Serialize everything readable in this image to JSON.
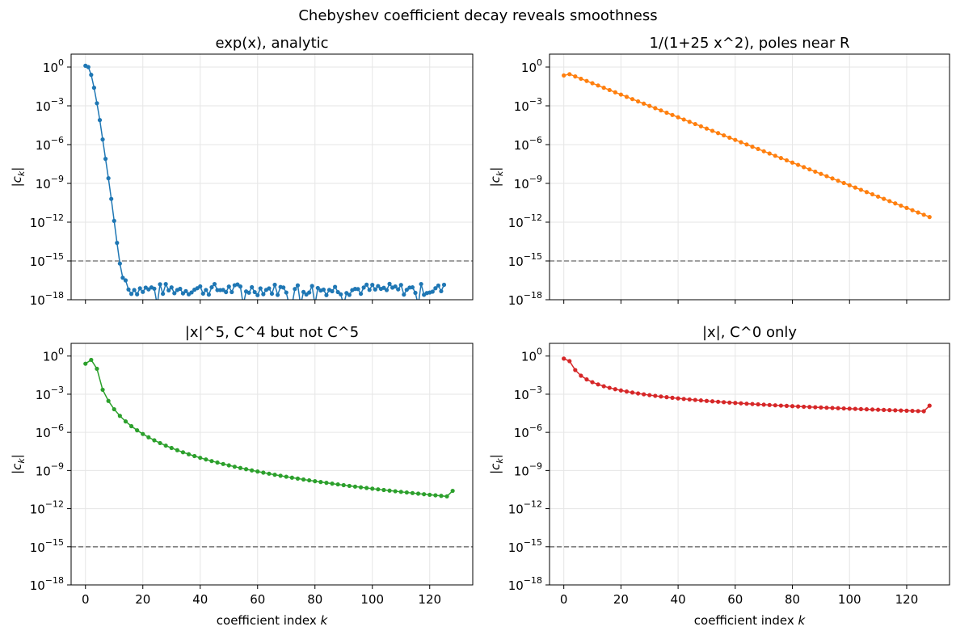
{
  "figure": {
    "suptitle": "Chebyshev coefficient decay reveals smoothness"
  },
  "chart_data": [
    {
      "type": "line",
      "title": "exp(x), analytic",
      "color": "#1f77b4",
      "xlabel": "",
      "ylabel": "|c_k|",
      "yscale": "log",
      "ylim_exp": [
        -18,
        1
      ],
      "xlim": [
        -5,
        135
      ],
      "yticks_exp": [
        0,
        -3,
        -6,
        -9,
        -12,
        -15,
        -18
      ],
      "xticks": [
        0,
        20,
        40,
        60,
        80,
        100,
        120
      ],
      "show_xticklabels": false,
      "grid": true,
      "reference_line": {
        "value": "1e-15",
        "style": "dashed",
        "color": "#808080"
      },
      "series": [
        {
          "x": [
            0,
            1,
            2,
            3,
            4,
            5,
            6,
            7,
            8,
            9,
            10,
            11,
            12,
            13,
            14
          ],
          "log10_y": [
            0.1,
            0.0,
            -0.6,
            -1.6,
            -2.8,
            -4.1,
            -5.6,
            -7.1,
            -8.6,
            -10.2,
            -11.9,
            -13.6,
            -15.2,
            -16.3,
            -16.5
          ],
          "noise_floor": {
            "from_x": 15,
            "to_x": 125,
            "range_log10": [
              -18.3,
              -16.8
            ],
            "description_of_values": "fluctuating around 1e-17"
          }
        }
      ]
    },
    {
      "type": "line",
      "title": "1/(1+25 x^2), poles near R",
      "color": "#ff7f0e",
      "xlabel": "",
      "ylabel": "|c_k|",
      "yscale": "log",
      "ylim_exp": [
        -18,
        1
      ],
      "xlim": [
        -5,
        135
      ],
      "yticks_exp": [
        0,
        -3,
        -6,
        -9,
        -12,
        -15,
        -18
      ],
      "xticks": [
        0,
        20,
        40,
        60,
        80,
        100,
        120
      ],
      "show_xticklabels": false,
      "grid": true,
      "reference_line": {
        "value": "1e-15",
        "style": "dashed",
        "color": "#808080"
      },
      "series": [
        {
          "x_step": 2,
          "x_start": 0,
          "x_end": 128,
          "log10_y_start": -0.65,
          "log10_y_peak_at_2": -0.55,
          "log10_y_end": -11.6
        }
      ]
    },
    {
      "type": "line",
      "title": "|x|^5, C^4 but not C^5",
      "color": "#2ca02c",
      "xlabel": "coefficient index k",
      "ylabel": "|c_k|",
      "yscale": "log",
      "ylim_exp": [
        -18,
        1
      ],
      "xlim": [
        -5,
        135
      ],
      "yticks_exp": [
        0,
        -3,
        -6,
        -9,
        -12,
        -15,
        -18
      ],
      "xticks": [
        0,
        20,
        40,
        60,
        80,
        100,
        120
      ],
      "show_xticklabels": true,
      "grid": true,
      "reference_line": {
        "value": "1e-15",
        "style": "dashed",
        "color": "#808080"
      },
      "series": [
        {
          "x_step": 2,
          "x_start": 0,
          "x_end": 128,
          "log10_y_at_0": -0.6,
          "log10_y_at_2": -0.3,
          "log10_y_at_4": -1.0,
          "law": "k^-6",
          "log10_y_end": -10.6
        }
      ]
    },
    {
      "type": "line",
      "title": "|x|, C^0 only",
      "color": "#d62728",
      "xlabel": "coefficient index k",
      "ylabel": "|c_k|",
      "yscale": "log",
      "ylim_exp": [
        -18,
        1
      ],
      "xlim": [
        -5,
        135
      ],
      "yticks_exp": [
        0,
        -3,
        -6,
        -9,
        -12,
        -15,
        -18
      ],
      "xticks": [
        0,
        20,
        40,
        60,
        80,
        100,
        120
      ],
      "show_xticklabels": true,
      "grid": true,
      "reference_line": {
        "value": "1e-15",
        "style": "dashed",
        "color": "#808080"
      },
      "series": [
        {
          "x_step": 2,
          "x_start": 0,
          "x_end": 128,
          "log10_y_at_0": -0.2,
          "log10_y_at_2": -0.4,
          "law": "k^-2",
          "log10_y_end": -3.9
        }
      ]
    }
  ]
}
